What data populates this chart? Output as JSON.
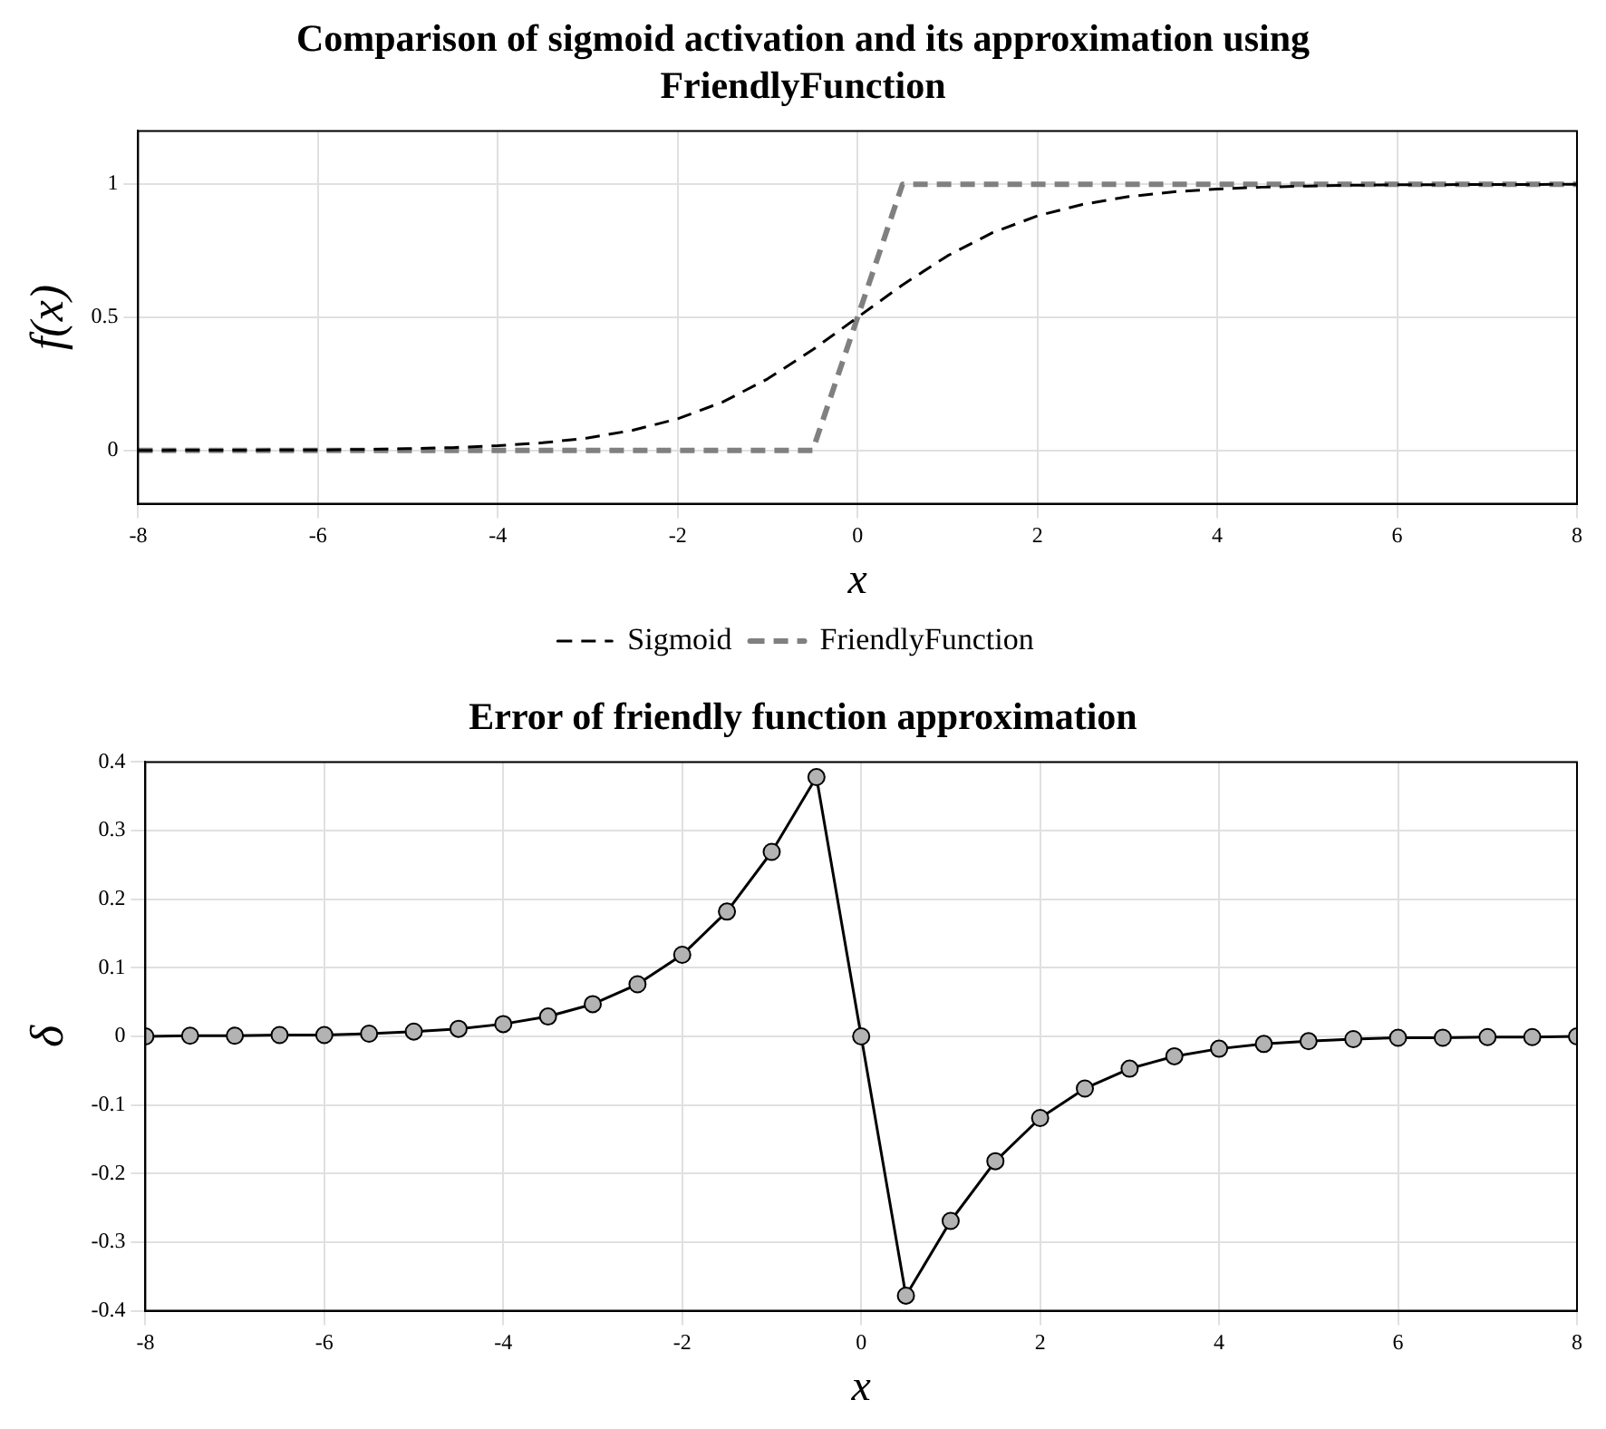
{
  "chart_data": [
    {
      "type": "line",
      "title": "Comparison of sigmoid activation and its approximation using FriendlyFunction",
      "xlabel": "x",
      "ylabel": "f(x)",
      "xlim": [
        -8,
        8
      ],
      "xticks": [
        -8,
        -6,
        -4,
        -2,
        0,
        2,
        4,
        6,
        8
      ],
      "ylim": [
        -0.2,
        1.2
      ],
      "yticks": [
        0,
        0.5,
        1
      ],
      "grid": true,
      "legend": "bottom",
      "series": [
        {
          "name": "Sigmoid",
          "color": "#000000",
          "line_style": "dashed",
          "x": [
            -8,
            -7.5,
            -7,
            -6.5,
            -6,
            -5.5,
            -5,
            -4.5,
            -4,
            -3.5,
            -3,
            -2.5,
            -2,
            -1.5,
            -1,
            -0.5,
            0,
            0.5,
            1,
            1.5,
            2,
            2.5,
            3,
            3.5,
            4,
            4.5,
            5,
            5.5,
            6,
            6.5,
            7,
            7.5,
            8
          ],
          "values": [
            0.0,
            0.001,
            0.001,
            0.002,
            0.002,
            0.004,
            0.007,
            0.011,
            0.018,
            0.029,
            0.047,
            0.076,
            0.119,
            0.182,
            0.269,
            0.378,
            0.5,
            0.622,
            0.731,
            0.818,
            0.881,
            0.924,
            0.953,
            0.971,
            0.982,
            0.989,
            0.993,
            0.996,
            0.998,
            0.998,
            0.999,
            0.999,
            1.0
          ]
        },
        {
          "name": "FriendlyFunction",
          "color": "#808080",
          "line_style": "dashed",
          "x": [
            -8,
            -0.5,
            0.5,
            8
          ],
          "values": [
            0,
            0,
            1,
            1
          ]
        }
      ]
    },
    {
      "type": "line",
      "title": "Error of friendly function approximation",
      "xlabel": "x",
      "ylabel": "δ",
      "xlim": [
        -8,
        8
      ],
      "xticks": [
        -8,
        -6,
        -4,
        -2,
        0,
        2,
        4,
        6,
        8
      ],
      "ylim": [
        -0.4,
        0.4
      ],
      "yticks": [
        -0.4,
        -0.3,
        -0.2,
        -0.1,
        0,
        0.1,
        0.2,
        0.3,
        0.4
      ],
      "grid": true,
      "marker": "circle",
      "series": [
        {
          "color": "#000000",
          "line_style": "solid",
          "x": [
            -8,
            -7.5,
            -7,
            -6.5,
            -6,
            -5.5,
            -5,
            -4.5,
            -4,
            -3.5,
            -3,
            -2.5,
            -2,
            -1.5,
            -1,
            -0.5,
            0,
            0.5,
            1,
            1.5,
            2,
            2.5,
            3,
            3.5,
            4,
            4.5,
            5,
            5.5,
            6,
            6.5,
            7,
            7.5,
            8
          ],
          "values": [
            0.0,
            0.001,
            0.001,
            0.002,
            0.002,
            0.004,
            0.007,
            0.011,
            0.018,
            0.029,
            0.047,
            0.076,
            0.119,
            0.182,
            0.269,
            0.378,
            0,
            -0.378,
            -0.269,
            -0.182,
            -0.119,
            -0.076,
            -0.047,
            -0.029,
            -0.018,
            -0.011,
            -0.007,
            -0.004,
            -0.002,
            -0.002,
            -0.001,
            -0.001,
            0.0
          ]
        }
      ]
    }
  ]
}
